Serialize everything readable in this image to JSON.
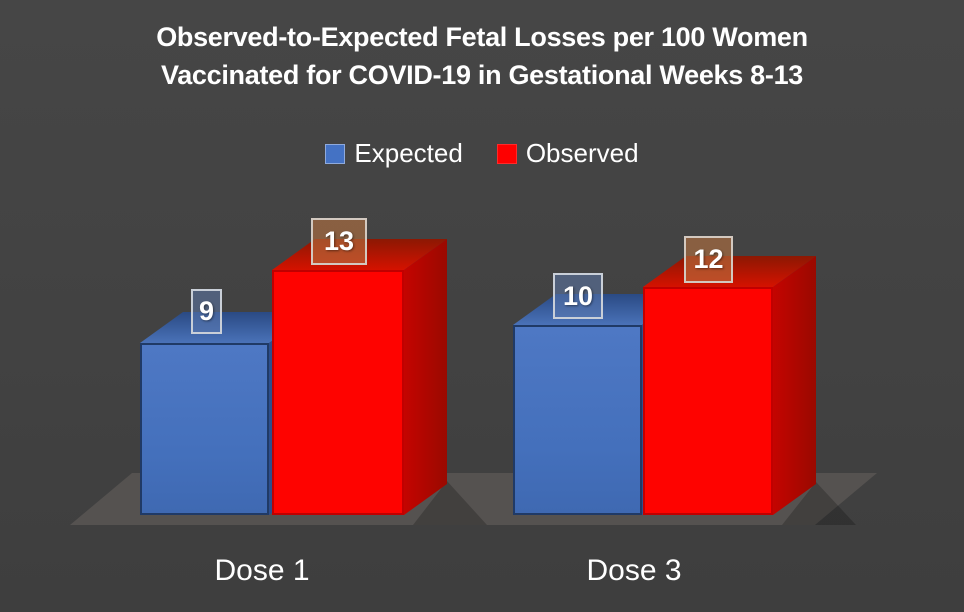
{
  "title": {
    "line1": "Observed-to-Expected Fetal Losses per 100 Women",
    "line2": "Vaccinated for COVID-19 in Gestational Weeks 8-13"
  },
  "chart_data": {
    "type": "bar",
    "style": "3d-column",
    "title": "Observed-to-Expected Fetal Losses per 100 Women Vaccinated for COVID-19 in Gestational Weeks 8-13",
    "categories": [
      "Dose 1",
      "Dose 3"
    ],
    "series": [
      {
        "name": "Expected",
        "color": "#4472C4",
        "values": [
          9,
          10
        ]
      },
      {
        "name": "Observed",
        "color": "#FE0000",
        "values": [
          13,
          12
        ]
      }
    ],
    "data_labels_shown": true,
    "legend_position": "top",
    "axis_shown": false,
    "grid": false,
    "background_color": "#424242",
    "floor_color": "#555250",
    "text_color": "#FFFFFF"
  }
}
